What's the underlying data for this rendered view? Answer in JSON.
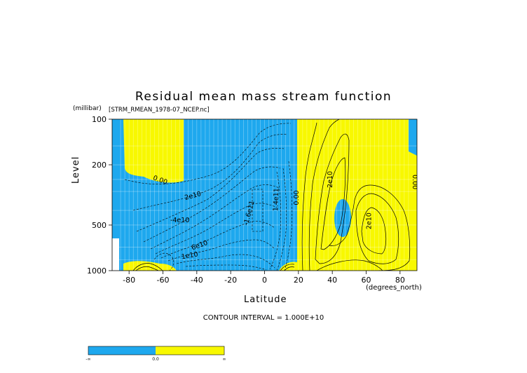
{
  "chart_data": {
    "type": "heatmap",
    "title": "Residual mean mass stream function",
    "dataset_label": "[STRM_RMEAN_1978-07_NCEP.nc]",
    "xlabel": "Latitude",
    "x_units": "(degrees_north)",
    "ylabel": "Level",
    "y_units": "(millibar)",
    "xlim": [
      -90,
      90
    ],
    "ylim": [
      1000,
      100
    ],
    "x_ticks": [
      -80,
      -60,
      -40,
      -20,
      0,
      20,
      40,
      60,
      80
    ],
    "y_ticks": [
      100,
      200,
      500,
      1000
    ],
    "contour_interval_text": "CONTOUR INTERVAL = 1.000E+10",
    "contour_labels": [
      {
        "text": "0.00",
        "lat": -62,
        "lev": 260
      },
      {
        "text": "2e10",
        "lat": -42,
        "lev": 330
      },
      {
        "text": "-4e10",
        "lat": -50,
        "lev": 480
      },
      {
        "text": "6e10",
        "lat": -38,
        "lev": 700
      },
      {
        "text": "1e10",
        "lat": -44,
        "lev": 820
      },
      {
        "text": "-1.6e11",
        "lat": -8,
        "lev": 420
      },
      {
        "text": "1.4e11",
        "lat": 8,
        "lev": 340
      },
      {
        "text": "0.00",
        "lat": 20,
        "lev": 330
      },
      {
        "text": "2e10",
        "lat": 40,
        "lev": 250
      },
      {
        "text": "2e10",
        "lat": 63,
        "lev": 470
      },
      {
        "text": "0.00",
        "lat": 90,
        "lev": 260
      }
    ],
    "colors": {
      "negative": "#1ea8ee",
      "positive": "#f8f800"
    },
    "colorbar": {
      "labels": [
        "-∞",
        "0.0",
        "∞"
      ]
    }
  }
}
